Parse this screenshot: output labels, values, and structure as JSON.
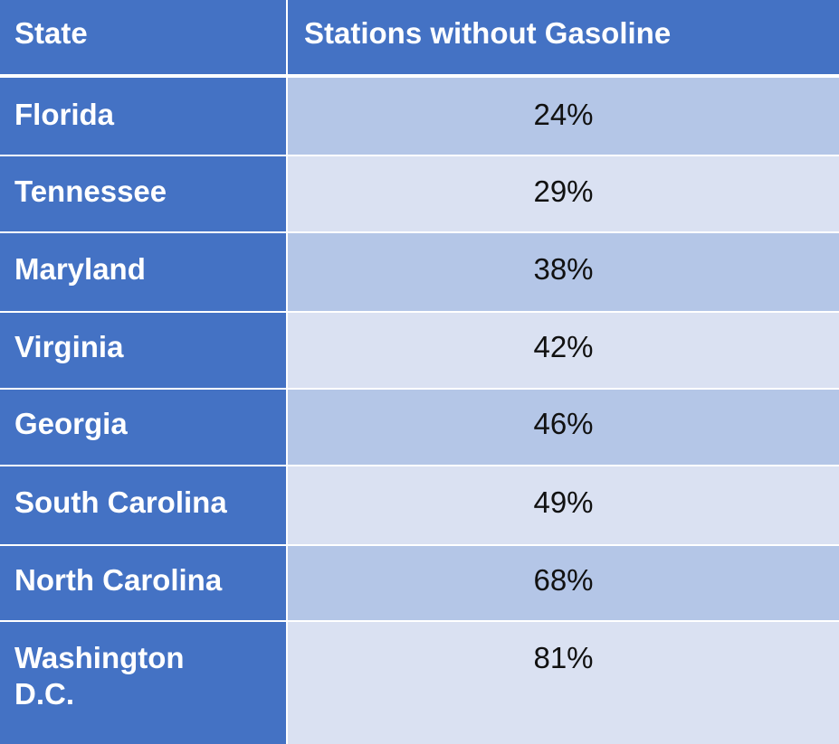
{
  "chart_data": {
    "type": "table",
    "columns": [
      "State",
      "Stations without Gasoline"
    ],
    "rows": [
      {
        "state": "Florida",
        "value": "24%"
      },
      {
        "state": "Tennessee",
        "value": "29%"
      },
      {
        "state": "Maryland",
        "value": "38%"
      },
      {
        "state": "Virginia",
        "value": "42%"
      },
      {
        "state": "Georgia",
        "value": "46%"
      },
      {
        "state": "South Carolina",
        "value": "49%"
      },
      {
        "state": "North Carolina",
        "value": "68%"
      },
      {
        "state": "Washington D.C.",
        "value": "81%"
      }
    ]
  },
  "colors": {
    "header_bg": "#4472C4",
    "state_bg": "#4472C4",
    "band_dark": "#B4C6E7",
    "band_light": "#DAE1F2"
  }
}
